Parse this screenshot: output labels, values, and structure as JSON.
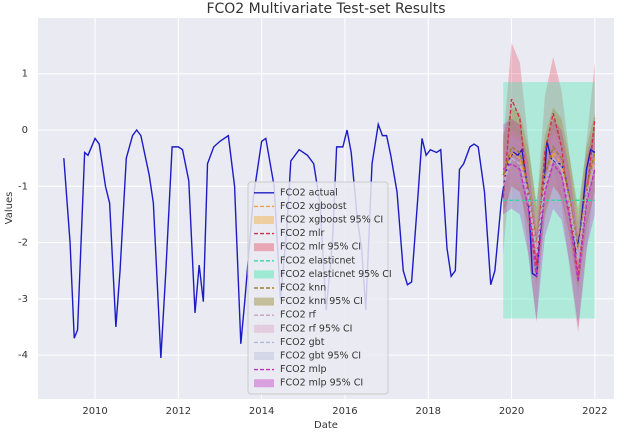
{
  "chart_data": {
    "type": "line",
    "title": "FCO2 Multivariate Test-set Results",
    "x_label": "Date",
    "y_label": "Values",
    "xlim": [
      2008.63,
      2022.46
    ],
    "ylim": [
      -4.78,
      1.99
    ],
    "xticks": [
      2010,
      2012,
      2014,
      2016,
      2018,
      2020,
      2022
    ],
    "yticks": [
      1,
      0,
      -1,
      -2,
      -3,
      -4
    ],
    "grid": true,
    "legend": "lower center",
    "test_x": [
      2019.8,
      2020.0,
      2020.2,
      2020.4,
      2020.6,
      2020.8,
      2021.0,
      2021.2,
      2021.4,
      2021.6,
      2021.8,
      2022.0
    ],
    "series": [
      {
        "name": "FCO2 actual",
        "kind": "line",
        "color": "#1c1cc4",
        "dash": false,
        "x": [
          2009.25,
          2009.4,
          2009.5,
          2009.58,
          2009.75,
          2009.83,
          2010.0,
          2010.1,
          2010.25,
          2010.35,
          2010.5,
          2010.6,
          2010.75,
          2010.9,
          2011.0,
          2011.1,
          2011.3,
          2011.4,
          2011.58,
          2011.7,
          2011.85,
          2012.0,
          2012.1,
          2012.25,
          2012.4,
          2012.5,
          2012.6,
          2012.7,
          2012.85,
          2013.0,
          2013.2,
          2013.35,
          2013.5,
          2013.6,
          2013.8,
          2014.0,
          2014.1,
          2014.3,
          2014.45,
          2014.6,
          2014.7,
          2014.9,
          2015.1,
          2015.25,
          2015.4,
          2015.55,
          2015.7,
          2015.8,
          2015.95,
          2016.05,
          2016.15,
          2016.3,
          2016.4,
          2016.5,
          2016.65,
          2016.8,
          2016.9,
          2017.0,
          2017.1,
          2017.25,
          2017.4,
          2017.5,
          2017.6,
          2017.75,
          2017.85,
          2017.95,
          2018.05,
          2018.2,
          2018.3,
          2018.45,
          2018.55,
          2018.65,
          2018.75,
          2018.85,
          2019.0,
          2019.1,
          2019.2,
          2019.35,
          2019.5,
          2019.6,
          2019.75,
          2019.85,
          2019.95,
          2020.05,
          2020.15,
          2020.25,
          2020.4,
          2020.5,
          2020.6,
          2020.75,
          2020.85,
          2020.95,
          2021.1,
          2021.2,
          2021.3,
          2021.45,
          2021.55,
          2021.65,
          2021.8,
          2021.9,
          2022.0
        ],
        "values": [
          -0.5,
          -2.0,
          -3.7,
          -3.55,
          -0.4,
          -0.45,
          -0.15,
          -0.25,
          -1.0,
          -1.3,
          -3.5,
          -2.5,
          -0.5,
          -0.1,
          0.0,
          -0.1,
          -0.8,
          -1.3,
          -4.05,
          -2.5,
          -0.3,
          -0.3,
          -0.35,
          -0.9,
          -3.25,
          -2.4,
          -3.05,
          -0.6,
          -0.3,
          -0.2,
          -0.1,
          -1.0,
          -3.8,
          -3.0,
          -1.2,
          -0.2,
          -0.15,
          -1.0,
          -3.0,
          -1.8,
          -0.55,
          -0.35,
          -0.45,
          -0.6,
          -1.3,
          -3.2,
          -2.0,
          -0.3,
          -0.3,
          0.0,
          -0.4,
          -1.6,
          -2.1,
          -3.2,
          -0.6,
          0.1,
          -0.1,
          -0.1,
          -0.45,
          -1.1,
          -2.5,
          -2.75,
          -2.7,
          -1.2,
          -0.15,
          -0.45,
          -0.35,
          -0.4,
          -0.35,
          -2.1,
          -2.6,
          -2.5,
          -0.7,
          -0.6,
          -0.3,
          -0.25,
          -0.3,
          -1.1,
          -2.75,
          -2.5,
          -1.3,
          -0.8,
          -0.5,
          -0.4,
          -0.45,
          -0.35,
          -1.1,
          -2.55,
          -2.6,
          -1.3,
          -0.2,
          -0.5,
          -0.6,
          -0.6,
          -0.85,
          -1.5,
          -2.2,
          -1.8,
          -0.7,
          -0.35,
          -0.4
        ]
      },
      {
        "name": "FCO2 xgboost",
        "kind": "line",
        "color": "#f0a040",
        "dash": true,
        "values": [
          -0.9,
          -0.4,
          -0.5,
          -1.1,
          -2.2,
          -1.0,
          -0.4,
          -0.6,
          -1.3,
          -2.3,
          -1.1,
          -0.5
        ]
      },
      {
        "name": "FCO2 xgboost 95% CI",
        "kind": "band",
        "color": "#f5a623",
        "opacity": 0.3,
        "lower": [
          -1.5,
          -1.0,
          -1.1,
          -1.7,
          -2.8,
          -1.6,
          -1.0,
          -1.2,
          -1.9,
          -2.9,
          -1.7,
          -1.1
        ],
        "upper": [
          -0.3,
          0.2,
          0.1,
          -0.5,
          -1.6,
          -0.4,
          0.2,
          0.0,
          -0.7,
          -1.7,
          -0.5,
          0.1
        ]
      },
      {
        "name": "FCO2 mlr",
        "kind": "line",
        "color": "#d03048",
        "dash": true,
        "values": [
          -1.2,
          0.55,
          0.2,
          -1.2,
          -2.4,
          -0.4,
          0.3,
          -0.3,
          -1.5,
          -2.6,
          -1.2,
          0.2
        ]
      },
      {
        "name": "FCO2 mlr 95% CI",
        "kind": "band",
        "color": "#e8405a",
        "opacity": 0.3,
        "lower": [
          -2.2,
          -0.45,
          -0.8,
          -2.2,
          -3.4,
          -1.4,
          -0.7,
          -1.3,
          -2.5,
          -3.6,
          -2.2,
          -0.8
        ],
        "upper": [
          -0.2,
          1.55,
          1.2,
          -0.2,
          -1.4,
          0.6,
          1.3,
          0.7,
          -0.5,
          -1.6,
          -0.2,
          1.2
        ]
      },
      {
        "name": "FCO2 elasticnet",
        "kind": "line",
        "color": "#30d8a0",
        "dash": true,
        "values": [
          -1.25,
          -1.25,
          -1.25,
          -1.25,
          -1.25,
          -1.25,
          -1.25,
          -1.25,
          -1.25,
          -1.25,
          -1.25,
          -1.25
        ]
      },
      {
        "name": "FCO2 elasticnet 95% CI",
        "kind": "band",
        "color": "#3fe8b0",
        "opacity": 0.35,
        "lower": [
          -3.35,
          -3.35,
          -3.35,
          -3.35,
          -3.35,
          -3.35,
          -3.35,
          -3.35,
          -3.35,
          -3.35,
          -3.35,
          -3.35
        ],
        "upper": [
          0.85,
          0.85,
          0.85,
          0.85,
          0.85,
          0.85,
          0.85,
          0.85,
          0.85,
          0.85,
          0.85,
          0.85
        ]
      },
      {
        "name": "FCO2 knn",
        "kind": "line",
        "color": "#9a8030",
        "dash": true,
        "values": [
          -0.8,
          -0.3,
          -0.4,
          -1.0,
          -2.0,
          -0.8,
          -0.3,
          -0.5,
          -1.2,
          -2.1,
          -1.0,
          -0.4
        ]
      },
      {
        "name": "FCO2 knn 95% CI",
        "kind": "band",
        "color": "#9a8a30",
        "opacity": 0.35,
        "lower": [
          -1.5,
          -1.0,
          -1.1,
          -1.7,
          -2.7,
          -1.5,
          -1.0,
          -1.2,
          -1.9,
          -2.8,
          -1.7,
          -1.1
        ],
        "upper": [
          -0.1,
          0.4,
          0.3,
          -0.3,
          -1.3,
          -0.1,
          0.4,
          0.2,
          -0.5,
          -1.4,
          -0.3,
          0.3
        ]
      },
      {
        "name": "FCO2 rf",
        "kind": "line",
        "color": "#c8a0b8",
        "dash": true,
        "values": [
          -0.9,
          -0.5,
          -0.6,
          -1.1,
          -2.1,
          -0.9,
          -0.5,
          -0.7,
          -1.3,
          -2.2,
          -1.1,
          -0.6
        ]
      },
      {
        "name": "FCO2 rf 95% CI",
        "kind": "band",
        "color": "#d8a0c0",
        "opacity": 0.3,
        "lower": [
          -1.4,
          -1.0,
          -1.1,
          -1.6,
          -2.6,
          -1.4,
          -1.0,
          -1.2,
          -1.8,
          -2.7,
          -1.6,
          -1.1
        ],
        "upper": [
          -0.4,
          0.0,
          -0.1,
          -0.6,
          -1.6,
          -0.4,
          0.0,
          -0.2,
          -0.8,
          -1.7,
          -0.6,
          -0.1
        ]
      },
      {
        "name": "FCO2 gbt",
        "kind": "line",
        "color": "#b0b8d8",
        "dash": true,
        "values": [
          -1.0,
          -0.5,
          -0.6,
          -1.2,
          -2.2,
          -1.0,
          -0.5,
          -0.7,
          -1.4,
          -2.3,
          -1.2,
          -0.6
        ]
      },
      {
        "name": "FCO2 gbt 95% CI",
        "kind": "band",
        "color": "#b0b8d8",
        "opacity": 0.3,
        "lower": [
          -1.4,
          -0.9,
          -1.0,
          -1.6,
          -2.6,
          -1.4,
          -0.9,
          -1.1,
          -1.8,
          -2.7,
          -1.6,
          -1.0
        ],
        "upper": [
          -0.6,
          -0.1,
          -0.2,
          -0.8,
          -1.8,
          -0.6,
          -0.1,
          -0.3,
          -1.0,
          -1.9,
          -0.8,
          -0.2
        ]
      },
      {
        "name": "FCO2 mlp",
        "kind": "line",
        "color": "#c030c0",
        "dash": true,
        "values": [
          -0.7,
          -0.6,
          -0.7,
          -1.4,
          -2.6,
          -1.1,
          -0.6,
          -0.8,
          -1.6,
          -2.7,
          -1.3,
          -0.7
        ]
      },
      {
        "name": "FCO2 mlp 95% CI",
        "kind": "band",
        "color": "#c030c0",
        "opacity": 0.3,
        "lower": [
          -1.5,
          -1.4,
          -1.5,
          -2.2,
          -3.4,
          -1.9,
          -1.4,
          -1.6,
          -2.4,
          -3.5,
          -2.1,
          -1.5
        ],
        "upper": [
          0.1,
          0.2,
          0.1,
          -0.6,
          -1.8,
          -0.3,
          0.2,
          0.0,
          -0.8,
          -1.9,
          -0.5,
          0.1
        ]
      }
    ]
  }
}
